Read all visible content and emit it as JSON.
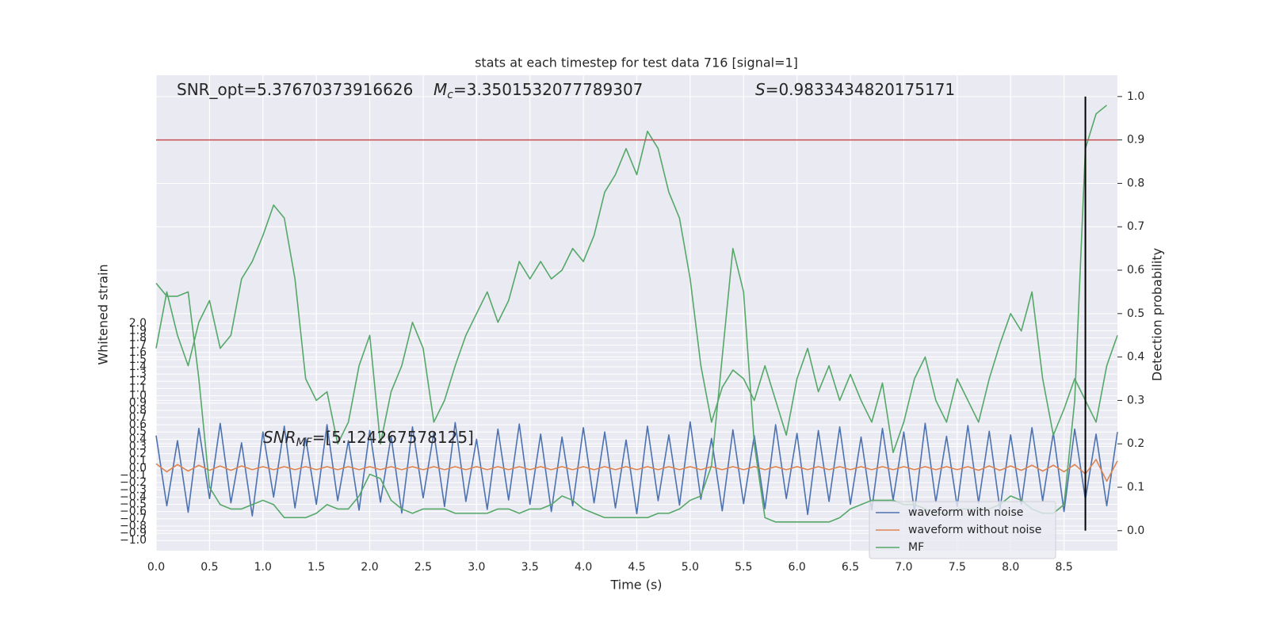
{
  "chart_data": {
    "type": "line",
    "title": "stats at each timestep for test data 716 [signal=1]",
    "xlabel": "Time (s)",
    "ylabel": "Whitened strain",
    "y2label": "Detection probability",
    "x": [
      0,
      0.1,
      0.2,
      0.3,
      0.4,
      0.5,
      0.6,
      0.7,
      0.8,
      0.9,
      1,
      1.1,
      1.2,
      1.3,
      1.4,
      1.5,
      1.6,
      1.7,
      1.8,
      1.9,
      2,
      2.1,
      2.2,
      2.3,
      2.4,
      2.5,
      2.6,
      2.7,
      2.8,
      2.9,
      3,
      3.1,
      3.2,
      3.3,
      3.4,
      3.5,
      3.6,
      3.7,
      3.8,
      3.9,
      4,
      4.1,
      4.2,
      4.3,
      4.4,
      4.5,
      4.6,
      4.7,
      4.8,
      4.9,
      5,
      5.1,
      5.2,
      5.3,
      5.4,
      5.5,
      5.6,
      5.7,
      5.8,
      5.9,
      6,
      6.1,
      6.2,
      6.3,
      6.4,
      6.5,
      6.6,
      6.7,
      6.8,
      6.9,
      7,
      7.1,
      7.2,
      7.3,
      7.4,
      7.5,
      7.6,
      7.7,
      7.8,
      7.9,
      8,
      8.1,
      8.2,
      8.3,
      8.4,
      8.5,
      8.6,
      8.7,
      8.8,
      8.9,
      9
    ],
    "series": [
      {
        "name": "waveform with noise",
        "color": "#4c72b0",
        "axis": "y",
        "values": [
          0.45,
          -0.52,
          0.38,
          -0.61,
          0.55,
          -0.42,
          0.62,
          -0.48,
          0.35,
          -0.66,
          0.5,
          -0.4,
          0.58,
          -0.55,
          0.42,
          -0.5,
          0.6,
          -0.45,
          0.38,
          -0.58,
          0.52,
          -0.47,
          0.44,
          -0.62,
          0.57,
          -0.41,
          0.49,
          -0.53,
          0.63,
          -0.46,
          0.4,
          -0.57,
          0.54,
          -0.44,
          0.61,
          -0.5,
          0.47,
          -0.6,
          0.43,
          -0.52,
          0.56,
          -0.48,
          0.5,
          -0.55,
          0.39,
          -0.63,
          0.58,
          -0.45,
          0.46,
          -0.51,
          0.64,
          -0.43,
          0.41,
          -0.59,
          0.53,
          -0.49,
          0.45,
          -0.56,
          0.6,
          -0.42,
          0.48,
          -0.64,
          0.52,
          -0.46,
          0.57,
          -0.5,
          0.43,
          -0.58,
          0.55,
          -0.44,
          0.5,
          -0.61,
          0.62,
          -0.47,
          0.44,
          -0.53,
          0.59,
          -0.48,
          0.51,
          -0.57,
          0.46,
          -0.5,
          0.56,
          -0.45,
          0.49,
          -0.6,
          0.54,
          -0.43,
          0.47,
          -0.52,
          0.5
        ]
      },
      {
        "name": "waveform without noise",
        "color": "#dd8452",
        "axis": "y",
        "values": [
          0.06,
          -0.05,
          0.05,
          -0.04,
          0.04,
          -0.03,
          0.03,
          -0.03,
          0.03,
          -0.02,
          0.02,
          -0.02,
          0.02,
          -0.02,
          0.02,
          -0.02,
          0.02,
          -0.02,
          0.02,
          -0.02,
          0.02,
          -0.02,
          0.02,
          -0.02,
          0.02,
          -0.02,
          0.02,
          -0.02,
          0.02,
          -0.02,
          0.02,
          -0.02,
          0.02,
          -0.02,
          0.02,
          -0.02,
          0.02,
          -0.02,
          0.02,
          -0.02,
          0.02,
          -0.02,
          0.02,
          -0.02,
          0.02,
          -0.02,
          0.02,
          -0.02,
          0.02,
          -0.02,
          0.02,
          -0.02,
          0.02,
          -0.02,
          0.02,
          -0.02,
          0.02,
          -0.02,
          0.02,
          -0.02,
          0.02,
          -0.02,
          0.02,
          -0.02,
          0.02,
          -0.02,
          0.02,
          -0.02,
          0.02,
          -0.02,
          0.02,
          -0.02,
          0.02,
          -0.02,
          0.02,
          -0.02,
          0.02,
          -0.03,
          0.03,
          -0.03,
          0.03,
          -0.03,
          0.04,
          -0.04,
          0.04,
          -0.05,
          0.05,
          -0.08,
          0.12,
          -0.18,
          0.1
        ]
      },
      {
        "name": "MF",
        "color": "#55a868",
        "axis": "y2",
        "values": [
          0.42,
          0.55,
          0.45,
          0.38,
          0.48,
          0.53,
          0.42,
          0.45,
          0.58,
          0.62,
          0.68,
          0.75,
          0.72,
          0.58,
          0.35,
          0.3,
          0.32,
          0.2,
          0.25,
          0.38,
          0.45,
          0.2,
          0.32,
          0.38,
          0.48,
          0.42,
          0.25,
          0.3,
          0.38,
          0.45,
          0.5,
          0.55,
          0.48,
          0.53,
          0.62,
          0.58,
          0.62,
          0.58,
          0.6,
          0.65,
          0.62,
          0.68,
          0.78,
          0.82,
          0.88,
          0.82,
          0.92,
          0.88,
          0.78,
          0.72,
          0.58,
          0.38,
          0.25,
          0.33,
          0.37,
          0.35,
          0.3,
          0.38,
          0.3,
          0.22,
          0.35,
          0.42,
          0.32,
          0.38,
          0.3,
          0.36,
          0.3,
          0.25,
          0.34,
          0.18,
          0.25,
          0.35,
          0.4,
          0.3,
          0.25,
          0.35,
          0.3,
          0.25,
          0.35,
          0.43,
          0.5,
          0.46,
          0.55,
          0.35,
          0.22,
          0.28,
          0.35,
          0.3,
          0.25,
          0.38,
          0.45
        ]
      },
      {
        "color": "#55a868",
        "axis": "y2",
        "values": [
          0.57,
          0.54,
          0.54,
          0.55,
          0.35,
          0.1,
          0.06,
          0.05,
          0.05,
          0.06,
          0.07,
          0.06,
          0.03,
          0.03,
          0.03,
          0.04,
          0.06,
          0.05,
          0.05,
          0.08,
          0.13,
          0.12,
          0.07,
          0.05,
          0.04,
          0.05,
          0.05,
          0.05,
          0.04,
          0.04,
          0.04,
          0.04,
          0.05,
          0.05,
          0.04,
          0.05,
          0.05,
          0.06,
          0.08,
          0.07,
          0.05,
          0.04,
          0.03,
          0.03,
          0.03,
          0.03,
          0.03,
          0.04,
          0.04,
          0.05,
          0.07,
          0.08,
          0.15,
          0.4,
          0.65,
          0.55,
          0.2,
          0.03,
          0.02,
          0.02,
          0.02,
          0.02,
          0.02,
          0.02,
          0.03,
          0.05,
          0.06,
          0.07,
          0.07,
          0.07,
          0.06,
          0.06,
          0.05,
          0.04,
          0.04,
          0.05,
          0.05,
          0.05,
          0.05,
          0.06,
          0.08,
          0.07,
          0.05,
          0.04,
          0.04,
          0.06,
          0.3,
          0.88,
          0.96,
          0.98,
          null
        ]
      }
    ],
    "xlim": [
      0,
      9.0
    ],
    "ylim": [
      -1.14,
      5.43
    ],
    "y2lim": [
      -0.046,
      1.049
    ],
    "xticks": [
      {
        "value": 0,
        "label": "0.0"
      },
      0.5,
      {
        "value": 1,
        "label": "1.0"
      },
      1.5,
      {
        "value": 2,
        "label": "2.0"
      },
      2.5,
      {
        "value": 3,
        "label": "3.0"
      },
      3.5,
      {
        "value": 4,
        "label": "4.0"
      },
      4.5,
      {
        "value": 5,
        "label": "5.0"
      },
      5.5,
      {
        "value": 6,
        "label": "6.0"
      },
      6.5,
      {
        "value": 7,
        "label": "7.0"
      },
      7.5,
      {
        "value": 8,
        "label": "8.0"
      },
      8.5
    ],
    "yticks": [
      {
        "value": -1,
        "label": "−1.0"
      },
      {
        "value": -0.9,
        "label": "−0.9"
      },
      {
        "value": -0.8,
        "label": "−0.8"
      },
      {
        "value": -0.7,
        "label": "−0.7"
      },
      {
        "value": -0.6,
        "label": "−0.6"
      },
      {
        "value": -0.5,
        "label": "−0.5"
      },
      {
        "value": -0.4,
        "label": "−0.4"
      },
      {
        "value": -0.3,
        "label": "−0.3"
      },
      {
        "value": -0.2,
        "label": "−0.2"
      },
      {
        "value": -0.1,
        "label": "−0.1"
      },
      {
        "value": 0,
        "label": "0.0"
      },
      0.1,
      0.2,
      0.3,
      0.4,
      0.5,
      0.6,
      0.7,
      0.8,
      0.9,
      {
        "value": 1,
        "label": "1.0"
      },
      1.1,
      1.2,
      1.3,
      1.4,
      1.5,
      1.6,
      1.7,
      1.8,
      1.9,
      {
        "value": 2,
        "label": "2.0"
      }
    ],
    "y2ticks": [
      {
        "value": 0,
        "label": "0.0"
      },
      0.1,
      0.2,
      0.3,
      0.4,
      0.5,
      0.6,
      0.7,
      0.8,
      0.9,
      {
        "value": 1,
        "label": "1.0"
      }
    ],
    "grid": true,
    "legend": "lower right",
    "hlines": [
      {
        "value": 0.9,
        "axis": "y2",
        "color": "#c44e52"
      }
    ],
    "vlines": [
      {
        "x": 8.7,
        "ymin": 0,
        "ymax": 1,
        "axis": "y2",
        "color": "#000000"
      }
    ],
    "annotations": [
      {
        "text": "SNR_opt=5.37670373916626"
      },
      {
        "symbol": "M",
        "sub": "c",
        "text": "=3.3501532077789307"
      },
      {
        "symbol": "S",
        "text": "=0.9833434820175171"
      },
      {
        "symbol": "SNR",
        "sub": "MF",
        "text": "=[5.124267578125]"
      }
    ]
  }
}
